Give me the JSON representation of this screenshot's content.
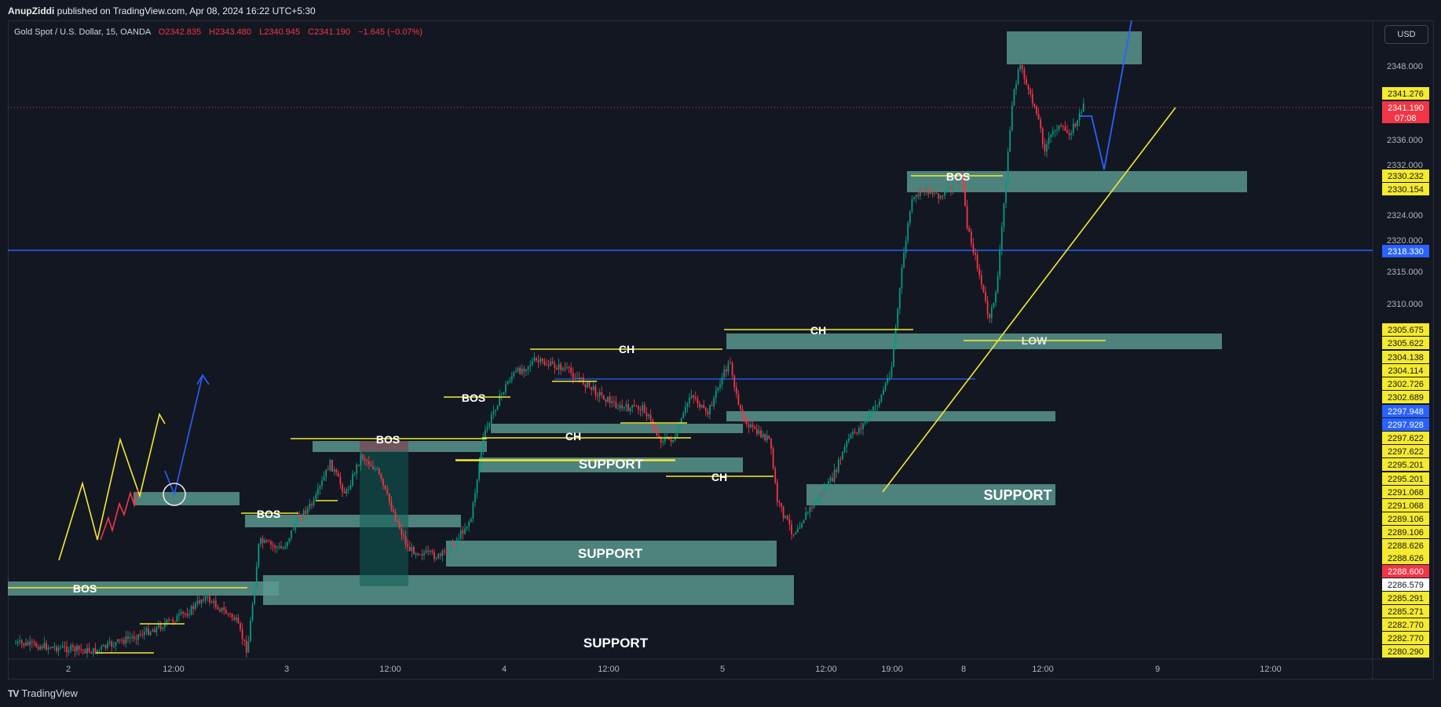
{
  "header": {
    "author": "AnupZiddi",
    "published_text": "published on TradingView.com, Apr 08, 2024 16:22 UTC+5:30"
  },
  "symbol": {
    "name": "Gold Spot / U.S. Dollar, 15, OANDA",
    "open": "O2342.835",
    "high": "H2343.480",
    "low": "L2340.945",
    "close": "C2341.190",
    "change": "−1.645 (−0.07%)"
  },
  "currency_button": "USD",
  "footer": {
    "brand": "TradingView"
  },
  "colors": {
    "background": "#131722",
    "up_candle": "#089981",
    "down_candle": "#f23645",
    "zone": "#5b9a91",
    "annotation_yellow": "#f5ea2d",
    "annotation_blue": "#2962ff"
  },
  "chart_data": {
    "type": "candlestick",
    "instrument": "XAUUSD",
    "interval": "15",
    "x_ticks": [
      "2",
      "12:00",
      "3",
      "12:00",
      "4",
      "12:00",
      "5",
      "12:00",
      "19:00",
      "8",
      "12:00",
      "9",
      "12:00"
    ],
    "y_ticks": [
      "2348.000",
      "2336.000",
      "2332.000",
      "2324.000",
      "2320.000",
      "2315.000",
      "2310.000"
    ],
    "price_labels": [
      {
        "value": "2341.276",
        "color": "yellow"
      },
      {
        "value": "2341.190",
        "extra": "07:08",
        "color": "red"
      },
      {
        "value": "2330.232",
        "color": "yellow"
      },
      {
        "value": "2330.154",
        "color": "yellow"
      },
      {
        "value": "2318.330",
        "color": "blue"
      },
      {
        "value": "2305.675",
        "color": "yellow"
      },
      {
        "value": "2305.622",
        "color": "yellow"
      },
      {
        "value": "2304.138",
        "color": "yellow"
      },
      {
        "value": "2304.114",
        "color": "yellow"
      },
      {
        "value": "2302.726",
        "color": "yellow"
      },
      {
        "value": "2302.689",
        "color": "yellow"
      },
      {
        "value": "2297.948",
        "color": "blue"
      },
      {
        "value": "2297.928",
        "color": "blue"
      },
      {
        "value": "2297.622",
        "color": "yellow"
      },
      {
        "value": "2297.622",
        "color": "yellow"
      },
      {
        "value": "2295.201",
        "color": "yellow"
      },
      {
        "value": "2295.201",
        "color": "yellow"
      },
      {
        "value": "2291.068",
        "color": "yellow"
      },
      {
        "value": "2291.068",
        "color": "yellow"
      },
      {
        "value": "2289.106",
        "color": "yellow"
      },
      {
        "value": "2289.106",
        "color": "yellow"
      },
      {
        "value": "2288.626",
        "color": "yellow"
      },
      {
        "value": "2288.626",
        "color": "yellow"
      },
      {
        "value": "2288.600",
        "color": "red"
      },
      {
        "value": "2286.579",
        "color": "white"
      },
      {
        "value": "2285.291",
        "color": "yellow"
      },
      {
        "value": "2285.271",
        "color": "yellow"
      },
      {
        "value": "2282.770",
        "color": "yellow"
      },
      {
        "value": "2282.770",
        "color": "yellow"
      },
      {
        "value": "2280.290",
        "color": "yellow"
      }
    ],
    "annotations": [
      "BOS",
      "BOS",
      "BOS",
      "BOS",
      "BOS",
      "CH",
      "CH",
      "CH",
      "CH",
      "SUPPORT",
      "SUPPORT",
      "SUPPORT",
      "SUPPORT",
      "LOW"
    ],
    "last_price": 2341.19
  }
}
